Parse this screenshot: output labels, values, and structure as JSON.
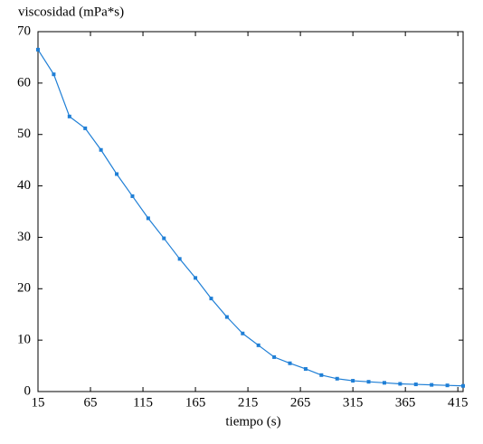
{
  "chart_data": {
    "type": "line",
    "ylabel": "viscosidad (mPa*s)",
    "xlabel": "tiempo (s)",
    "x": [
      15,
      30,
      45,
      60,
      75,
      90,
      105,
      120,
      135,
      150,
      165,
      180,
      195,
      210,
      225,
      240,
      255,
      270,
      285,
      300,
      315,
      330,
      345,
      360,
      375,
      390,
      405,
      420
    ],
    "series": [
      {
        "name": "viscosidad",
        "color": "#1f7fd6",
        "values": [
          66.5,
          61.7,
          53.5,
          51.2,
          47,
          42.3,
          38,
          33.7,
          29.8,
          25.8,
          22.1,
          18.1,
          14.5,
          11.3,
          9,
          6.7,
          5.5,
          4.4,
          3.2,
          2.5,
          2.1,
          1.9,
          1.7,
          1.5,
          1.4,
          1.3,
          1.2,
          1.1
        ]
      }
    ],
    "xlim": [
      15,
      420
    ],
    "xticks": [
      15,
      65,
      115,
      165,
      215,
      265,
      315,
      365,
      415
    ],
    "ylim": [
      0,
      70
    ],
    "yticks": [
      0,
      10,
      20,
      30,
      40,
      50,
      60,
      70
    ]
  }
}
